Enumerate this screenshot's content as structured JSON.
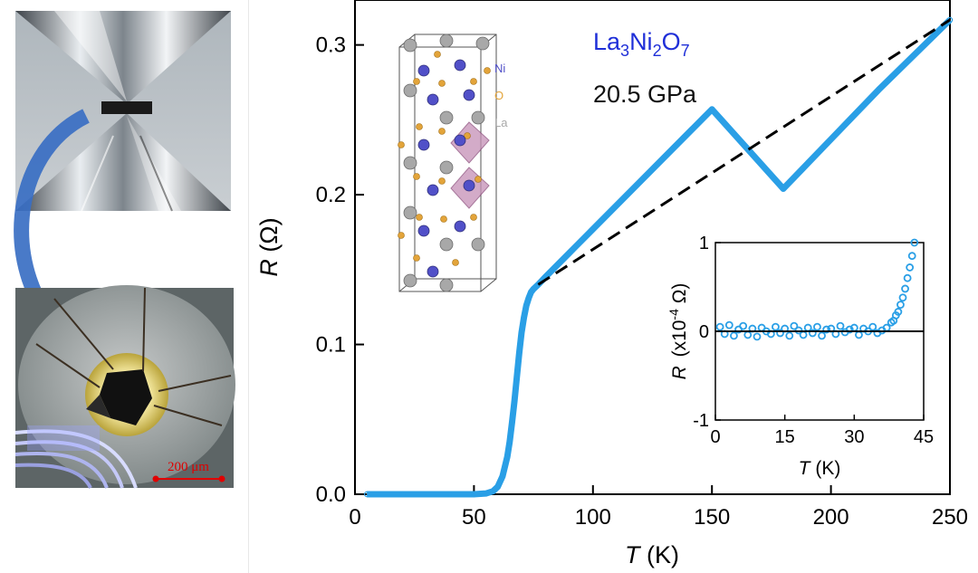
{
  "left_panel": {
    "scale_bar_label": "200 μm",
    "scale_bar_color": "#e00000",
    "arrow_color": "#3a6fc4"
  },
  "compound": {
    "base": "La",
    "s1": "3",
    "mid1": "Ni",
    "s2": "2",
    "mid2": "O",
    "s3": "7",
    "color": "#1f2fd8"
  },
  "pressure": "20.5 GPa",
  "structure_legend": [
    {
      "label": "Ni",
      "color": "#5150c8"
    },
    {
      "label": "O",
      "color": "#e3a43a"
    },
    {
      "label": "La",
      "color": "#a8a8a8"
    }
  ],
  "chart_data": [
    {
      "type": "line",
      "xlabel_var": "T",
      "xlabel_unit": "(K)",
      "ylabel_var": "R",
      "ylabel_unit": "(Ω)",
      "xlim": [
        0,
        250
      ],
      "ylim": [
        0,
        0.33
      ],
      "xticks": [
        0,
        50,
        100,
        150,
        200,
        250
      ],
      "yticks": [
        0.0,
        0.1,
        0.2,
        0.3
      ],
      "ytick_labels": [
        "0.0",
        "0.1",
        "0.2",
        "0.3"
      ],
      "series": [
        {
          "style": "data-markers",
          "color": "#2a9fe6",
          "x": [
            5,
            20,
            40,
            50,
            55,
            58,
            60,
            62,
            64,
            65,
            66,
            67,
            68,
            69,
            70,
            71,
            72,
            73,
            74,
            75,
            77,
            80,
            90,
            100,
            120,
            150,
            180,
            200,
            220,
            250
          ],
          "y": [
            0.0,
            0.0,
            0.0,
            0.0,
            0.0005,
            0.002,
            0.005,
            0.012,
            0.025,
            0.035,
            0.048,
            0.062,
            0.078,
            0.094,
            0.108,
            0.118,
            0.126,
            0.131,
            0.135,
            0.137,
            0.14,
            0.145,
            0.161,
            0.177,
            0.209,
            0.257,
            0.204,
            0.237,
            0.27,
            0.3167
          ]
        },
        {
          "style": "fit-dashed",
          "color": "#000000",
          "x": [
            77,
            250
          ],
          "y": [
            0.14,
            0.3167
          ]
        }
      ]
    },
    {
      "type": "scatter",
      "xlabel_var": "T",
      "xlabel_unit": "(K)",
      "ylabel_var": "R",
      "ylabel_pre": "(x10",
      "ylabel_exp": "-4",
      "ylabel_post": " Ω)",
      "xlim": [
        0,
        45
      ],
      "ylim": [
        -1,
        1
      ],
      "xticks": [
        0,
        15,
        30,
        45
      ],
      "yticks": [
        -1,
        0,
        1
      ],
      "ytick_labels": [
        "-1",
        "0",
        "1"
      ],
      "reference_line_y": 0,
      "series": [
        {
          "style": "open-circles",
          "color": "#2a9fe6",
          "x": [
            1,
            2,
            3,
            4,
            5,
            6,
            7,
            8,
            9,
            10,
            11,
            12,
            13,
            14,
            15,
            16,
            17,
            18,
            19,
            20,
            21,
            22,
            23,
            24,
            25,
            26,
            27,
            28,
            29,
            30,
            31,
            32,
            33,
            34,
            35,
            36,
            37,
            38,
            38.5,
            39,
            39.5,
            40,
            40.5,
            41,
            41.5,
            42,
            42.5,
            43
          ],
          "y": [
            0.05,
            -0.03,
            0.07,
            -0.05,
            0.02,
            0.06,
            -0.04,
            0.03,
            -0.06,
            0.04,
            0.0,
            -0.03,
            0.05,
            -0.02,
            0.03,
            -0.05,
            0.06,
            0.01,
            -0.04,
            0.04,
            -0.02,
            0.05,
            -0.05,
            0.02,
            0.03,
            -0.03,
            0.06,
            -0.01,
            0.02,
            0.04,
            -0.04,
            0.03,
            0.0,
            0.05,
            -0.02,
            0.01,
            0.04,
            0.1,
            0.12,
            0.18,
            0.22,
            0.3,
            0.38,
            0.48,
            0.6,
            0.72,
            0.85,
            1.0
          ]
        }
      ]
    }
  ]
}
